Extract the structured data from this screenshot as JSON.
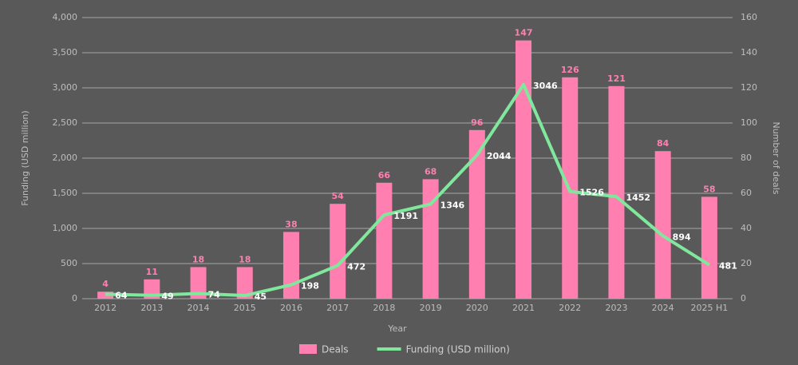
{
  "chart_data": {
    "type": "combo",
    "x_label": "Year",
    "y_label": "Funding (USD million)",
    "y2_label": "Number of deals",
    "categories": [
      "2012",
      "2013",
      "2014",
      "2015",
      "2016",
      "2017",
      "2018",
      "2019",
      "2020",
      "2021",
      "2022",
      "2023",
      "2024",
      "2025 H1"
    ],
    "series": [
      {
        "name": "Deals",
        "type": "bar",
        "axis": "y2",
        "color": "#ff7fb0",
        "values": [
          4,
          11,
          18,
          18,
          38,
          54,
          66,
          68,
          96,
          147,
          126,
          121,
          84,
          58
        ]
      },
      {
        "name": "Funding (USD million)",
        "type": "line",
        "axis": "y",
        "color": "#80e89c",
        "values": [
          64,
          49,
          74,
          45,
          198,
          472,
          1191,
          1346,
          2044,
          3046,
          1526,
          1452,
          894,
          481
        ]
      }
    ],
    "ylim": [
      0,
      4000
    ],
    "yticks": [
      0,
      500,
      {
        "value": 1000,
        "label": "1,000"
      },
      {
        "value": 1500,
        "label": "1,500"
      },
      {
        "value": 2000,
        "label": "2,000"
      },
      {
        "value": 2500,
        "label": "2,500"
      },
      {
        "value": 3000,
        "label": "3,000"
      },
      {
        "value": 3500,
        "label": "3,500"
      },
      {
        "value": 4000,
        "label": "4,000"
      }
    ],
    "y2lim": [
      0,
      160
    ],
    "y2ticks": [
      0,
      20,
      40,
      60,
      80,
      100,
      120,
      140,
      160
    ],
    "grid": true,
    "legend": "bottom"
  }
}
